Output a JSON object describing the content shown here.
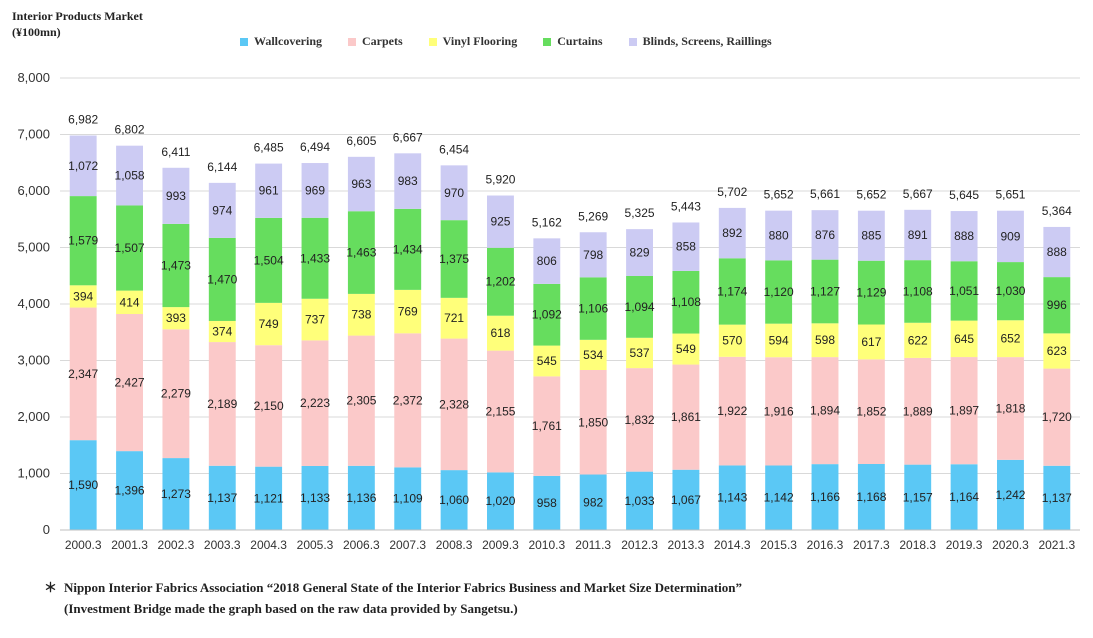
{
  "chart_data": {
    "type": "bar",
    "stacked": true,
    "title": "Interior Products Market",
    "unit_label": "(¥100mn)",
    "ylim": [
      0,
      8000
    ],
    "yticks": [
      "0",
      "1,000",
      "2,000",
      "3,000",
      "4,000",
      "5,000",
      "6,000",
      "7,000",
      "8,000"
    ],
    "grid": true,
    "legend_position": "top",
    "categories": [
      "2000.3",
      "2001.3",
      "2002.3",
      "2003.3",
      "2004.3",
      "2005.3",
      "2006.3",
      "2007.3",
      "2008.3",
      "2009.3",
      "2010.3",
      "2011.3",
      "2012.3",
      "2013.3",
      "2014.3",
      "2015.3",
      "2016.3",
      "2017.3",
      "2018.3",
      "2019.3",
      "2020.3",
      "2021.3"
    ],
    "series": [
      {
        "name": "Wallcovering",
        "color": "#5bc8f5",
        "values": [
          1590,
          1396,
          1273,
          1137,
          1121,
          1133,
          1136,
          1109,
          1060,
          1020,
          958,
          982,
          1033,
          1067,
          1143,
          1142,
          1166,
          1168,
          1157,
          1164,
          1242,
          1137
        ],
        "labels": [
          "1,590",
          "1,396",
          "1,273",
          "1,137",
          "1,121",
          "1,133",
          "1,136",
          "1,109",
          "1,060",
          "1,020",
          "958",
          "982",
          "1,033",
          "1,067",
          "1,143",
          "1,142",
          "1,166",
          "1,168",
          "1,157",
          "1,164",
          "1,242",
          "1,137"
        ]
      },
      {
        "name": "Carpets",
        "color": "#fbc9c9",
        "values": [
          2347,
          2427,
          2279,
          2189,
          2150,
          2223,
          2305,
          2372,
          2328,
          2155,
          1761,
          1850,
          1832,
          1861,
          1922,
          1916,
          1894,
          1852,
          1889,
          1897,
          1818,
          1720
        ],
        "labels": [
          "2,347",
          "2,427",
          "2,279",
          "2,189",
          "2,150",
          "2,223",
          "2,305",
          "2,372",
          "2,328",
          "2,155",
          "1,761",
          "1,850",
          "1,832",
          "1,861",
          "1,922",
          "1,916",
          "1,894",
          "1,852",
          "1,889",
          "1,897",
          "1,818",
          "1,720"
        ]
      },
      {
        "name": "Vinyl Flooring",
        "color": "#ffff7a",
        "values": [
          394,
          414,
          393,
          374,
          749,
          737,
          738,
          769,
          721,
          618,
          545,
          534,
          537,
          549,
          570,
          594,
          598,
          617,
          622,
          645,
          652,
          623
        ],
        "labels": [
          "394",
          "414",
          "393",
          "374",
          "749",
          "737",
          "738",
          "769",
          "721",
          "618",
          "545",
          "534",
          "537",
          "549",
          "570",
          "594",
          "598",
          "617",
          "622",
          "645",
          "652",
          "623"
        ]
      },
      {
        "name": "Curtains",
        "color": "#66dd5e",
        "values": [
          1579,
          1507,
          1473,
          1470,
          1504,
          1433,
          1463,
          1434,
          1375,
          1202,
          1092,
          1106,
          1094,
          1108,
          1174,
          1120,
          1127,
          1129,
          1108,
          1051,
          1030,
          996
        ],
        "labels": [
          "1,579",
          "1,507",
          "1,473",
          "1,470",
          "1,504",
          "1,433",
          "1,463",
          "1,434",
          "1,375",
          "1,202",
          "1,092",
          "1,106",
          "1,094",
          "1,108",
          "1,174",
          "1,120",
          "1,127",
          "1,129",
          "1,108",
          "1,051",
          "1,030",
          "996"
        ]
      },
      {
        "name": "Blinds, Screens, Raillings",
        "color": "#cccbf3",
        "values": [
          1072,
          1058,
          993,
          974,
          961,
          969,
          963,
          983,
          970,
          925,
          806,
          798,
          829,
          858,
          892,
          880,
          876,
          885,
          891,
          888,
          909,
          888
        ],
        "labels": [
          "1,072",
          "1,058",
          "993",
          "974",
          "961",
          "969",
          "963",
          "983",
          "970",
          "925",
          "806",
          "798",
          "829",
          "858",
          "892",
          "880",
          "876",
          "885",
          "891",
          "888",
          "909",
          "888"
        ]
      }
    ],
    "totals": [
      6982,
      6802,
      6411,
      6144,
      6485,
      6494,
      6605,
      6667,
      6454,
      5920,
      5162,
      5269,
      5325,
      5443,
      5702,
      5652,
      5661,
      5652,
      5667,
      5645,
      5651,
      5364
    ],
    "total_labels": [
      "6,982",
      "6,802",
      "6,411",
      "6,144",
      "6,485",
      "6,494",
      "6,605",
      "6,667",
      "6,454",
      "5,920",
      "5,162",
      "5,269",
      "5,325",
      "5,443",
      "5,702",
      "5,652",
      "5,661",
      "5,652",
      "5,667",
      "5,645",
      "5,651",
      "5,364"
    ]
  },
  "footnote": {
    "mark": "＊",
    "line1": "Nippon Interior Fabrics Association “2018 General State of the Interior Fabrics Business and Market Size Determination”",
    "line2": "(Investment Bridge made the graph based on the raw data provided by Sangetsu.)"
  }
}
